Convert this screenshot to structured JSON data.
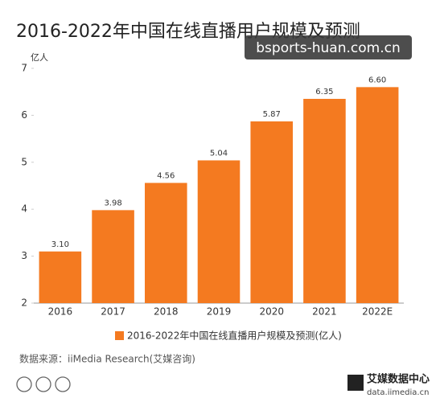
{
  "chart_data": {
    "type": "bar",
    "title": "2016-2022年中国在线直播用户规模及预测",
    "y_unit": "亿人",
    "categories": [
      "2016",
      "2017",
      "2018",
      "2019",
      "2020",
      "2021",
      "2022E"
    ],
    "series": [
      {
        "name": "2016-2022年中国在线直播用户规模及预测(亿人)",
        "color": "#f47a20",
        "values": [
          3.1,
          3.98,
          4.56,
          5.04,
          5.87,
          6.35,
          6.6
        ],
        "value_labels": [
          "3.10",
          "3.98",
          "4.56",
          "5.04",
          "5.87",
          "6.35",
          "6.60"
        ]
      }
    ],
    "ylim": [
      2,
      7
    ],
    "yticks": [
      2,
      3,
      4,
      5,
      6,
      7
    ],
    "grid": false,
    "legend": "bottom",
    "source": "数据来源：iiMedia Research(艾媒咨询)",
    "watermark": "bsports-huan.com.cn",
    "logo": {
      "name": "艾媒数据中心",
      "url": "data.iimedia.cn"
    }
  }
}
